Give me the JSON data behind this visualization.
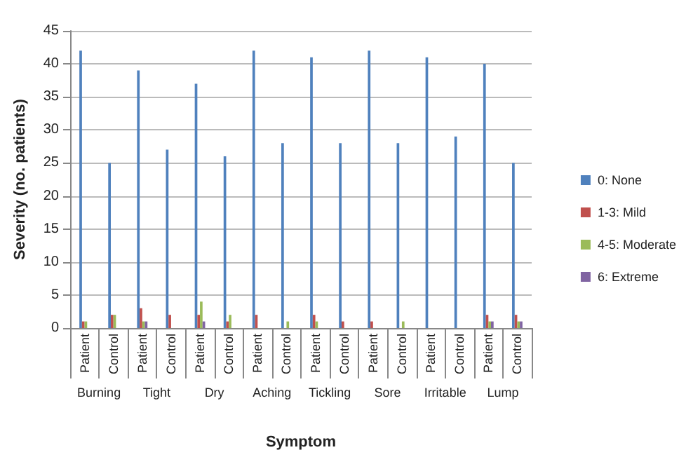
{
  "chart_data": {
    "type": "bar",
    "xlabel": "Symptom",
    "ylabel": "Severity (no. patients)",
    "categories": [
      "Patient",
      "Control",
      "Patient",
      "Control",
      "Patient",
      "Control",
      "Patient",
      "Control",
      "Patient",
      "Control",
      "Patient",
      "Control",
      "Patient",
      "Control",
      "Patient",
      "Control"
    ],
    "annotations": [
      "Burning",
      "Tight",
      "Dry",
      "Aching",
      "Tickling",
      "Sore",
      "Irritable",
      "Lump"
    ],
    "series": [
      {
        "name": "0: None",
        "color": "#4f81bd",
        "values": [
          42,
          25,
          39,
          27,
          37,
          26,
          42,
          28,
          41,
          28,
          42,
          28,
          41,
          29,
          40,
          25
        ]
      },
      {
        "name": "1-3: Mild",
        "color": "#c0504d",
        "values": [
          1,
          2,
          3,
          2,
          2,
          1,
          2,
          0,
          2,
          1,
          1,
          0,
          0,
          0,
          2,
          2
        ]
      },
      {
        "name": "4-5: Moderate",
        "color": "#9bbb59",
        "values": [
          1,
          2,
          1,
          0,
          4,
          2,
          0,
          1,
          1,
          0,
          0,
          1,
          0,
          0,
          1,
          1
        ]
      },
      {
        "name": "6: Extreme",
        "color": "#8064a2",
        "values": [
          0,
          0,
          1,
          0,
          1,
          0,
          0,
          0,
          0,
          0,
          0,
          0,
          0,
          0,
          1,
          1
        ]
      }
    ],
    "ylim": [
      0,
      45
    ],
    "yticks": [
      0,
      5,
      10,
      15,
      20,
      25,
      30,
      35,
      40,
      45
    ],
    "grid": "y",
    "legend": "right"
  }
}
